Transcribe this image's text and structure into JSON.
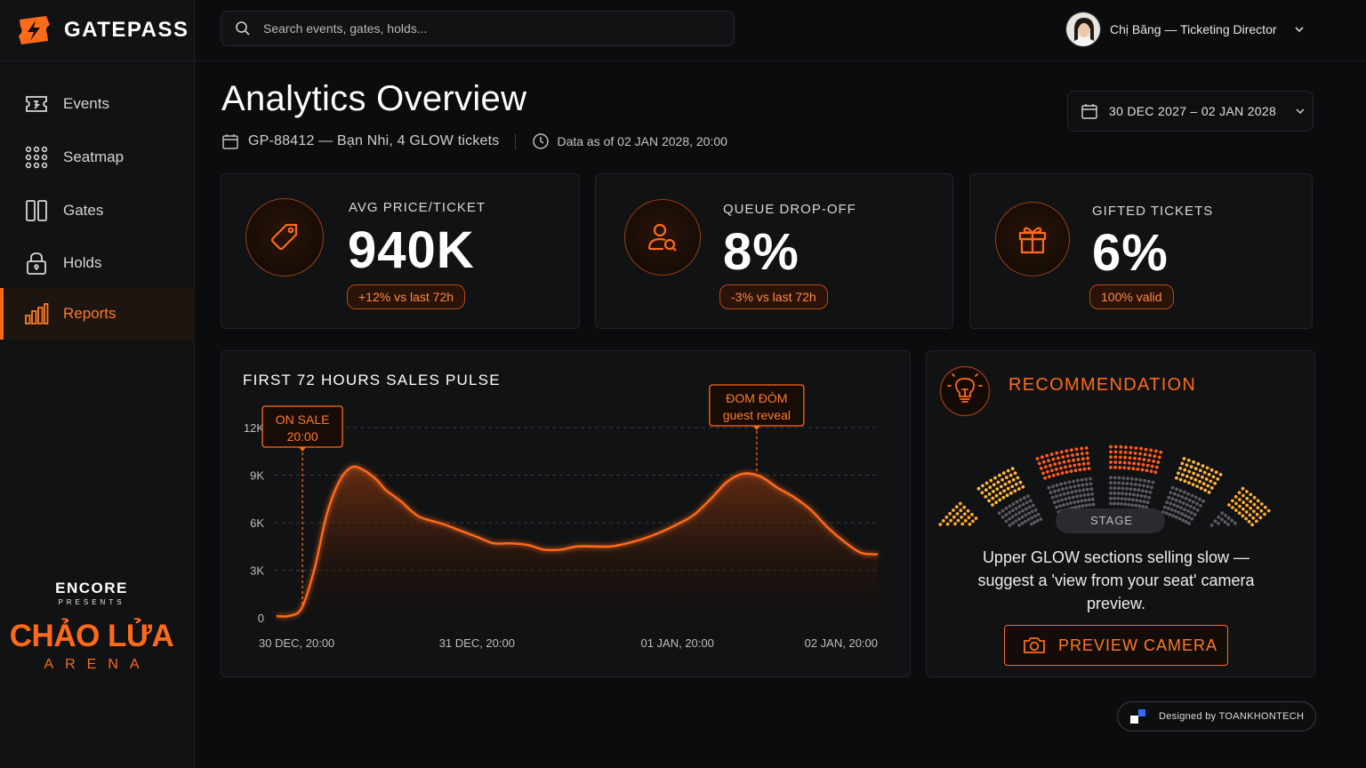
{
  "app": {
    "name": "GATEPASS"
  },
  "search": {
    "placeholder": "Search events, gates, holds..."
  },
  "user": {
    "label": "Chị Băng — Ticketing Director"
  },
  "sidebar": {
    "items": [
      {
        "label": "Events",
        "icon": "ticket-icon",
        "active": false
      },
      {
        "label": "Seatmap",
        "icon": "grid-dots-icon",
        "active": false
      },
      {
        "label": "Gates",
        "icon": "gate-icon",
        "active": false
      },
      {
        "label": "Holds",
        "icon": "lock-icon",
        "active": false
      },
      {
        "label": "Reports",
        "icon": "bar-chart-icon",
        "active": true
      }
    ],
    "brand": {
      "encore": "ENCORE",
      "presents": "PRESENTS",
      "venue": "CHẢO LỬA",
      "arena": "ARENA"
    }
  },
  "header": {
    "title": "Analytics Overview",
    "event": "GP-88412 — Bạn Nhi, 4 GLOW tickets",
    "data_as_of": "Data as of 02 JAN 2028, 20:00",
    "date_range": "30 DEC 2027 – 02 JAN 2028"
  },
  "kpis": [
    {
      "label": "AVG PRICE/TICKET",
      "value": "940K",
      "badge": "+12% vs last 72h",
      "icon": "price-tag-icon"
    },
    {
      "label": "QUEUE DROP-OFF",
      "value": "8%",
      "badge": "-3% vs last 72h",
      "icon": "user-search-icon"
    },
    {
      "label": "GIFTED TICKETS",
      "value": "6%",
      "badge": "100% valid",
      "icon": "gift-icon"
    }
  ],
  "chart": {
    "title": "FIRST 72 HOURS SALES PULSE",
    "annotations": [
      {
        "line1": "ON SALE",
        "line2": "20:00",
        "x": 3.1
      },
      {
        "line1": "ĐOM ĐÓM",
        "line2": "guest reveal",
        "x": 57.5
      }
    ]
  },
  "chart_data": {
    "type": "area",
    "title": "FIRST 72 HOURS SALES PULSE",
    "xlabel": "",
    "ylabel": "",
    "x_unit": "hours since 30 DEC, 20:00",
    "xlim": [
      0,
      72
    ],
    "ylim": [
      0,
      12000
    ],
    "x_tick_labels": [
      {
        "x": 0,
        "label": "30 DEC, 20:00"
      },
      {
        "x": 24,
        "label": "31 DEC, 20:00"
      },
      {
        "x": 48,
        "label": "01 JAN, 20:00"
      },
      {
        "x": 72,
        "label": "02 JAN, 20:00"
      }
    ],
    "y_ticks": [
      {
        "v": 0,
        "label": "0"
      },
      {
        "v": 3000,
        "label": "3K"
      },
      {
        "v": 6000,
        "label": "6K"
      },
      {
        "v": 9000,
        "label": "9K"
      },
      {
        "v": 12000,
        "label": "12K"
      }
    ],
    "grid": true,
    "series": [
      {
        "name": "",
        "x": [
          0,
          1.5,
          3,
          4.5,
          6,
          7.5,
          9,
          10.5,
          12,
          13,
          14,
          15,
          16,
          17,
          18,
          20,
          22,
          24,
          26,
          28,
          30,
          32,
          34,
          36,
          38,
          40,
          42,
          44,
          46,
          48,
          50,
          52,
          54,
          56,
          58,
          60,
          62,
          64,
          66,
          68,
          70,
          72
        ],
        "y": [
          100,
          120,
          600,
          3000,
          6500,
          8600,
          9500,
          9300,
          8700,
          8100,
          7700,
          7300,
          6800,
          6400,
          6200,
          5900,
          5500,
          5100,
          4700,
          4700,
          4600,
          4300,
          4300,
          4500,
          4500,
          4500,
          4700,
          5000,
          5400,
          5900,
          6500,
          7500,
          8600,
          9100,
          8900,
          8200,
          7600,
          6800,
          5700,
          4800,
          4100,
          4000
        ]
      }
    ]
  },
  "recommendation": {
    "title": "RECOMMENDATION",
    "stage": "STAGE",
    "text": "Upper GLOW sections selling slow — suggest a 'view from your seat' camera preview.",
    "button": "PREVIEW CAMERA"
  },
  "footer": {
    "designed_by": "Designed by TOANKHONTECH"
  },
  "colors": {
    "accent": "#ff6a1a",
    "background": "#0b0c0e",
    "panel": "#111214",
    "amber": "#ffb03a"
  }
}
